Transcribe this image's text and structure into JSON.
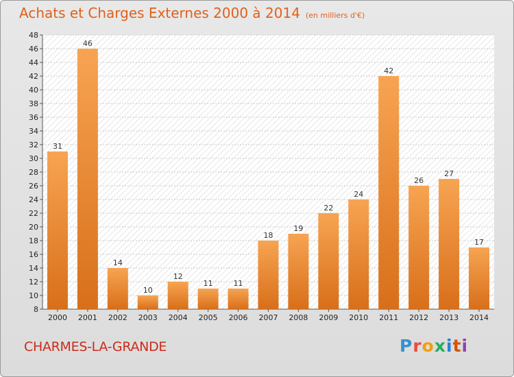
{
  "title": "Achats et Charges Externes 2000 à 2014",
  "subtitle": "(en milliers d'€)",
  "city": "CHARMES-LA-GRANDE",
  "logo": "Proxiti",
  "colors": {
    "bar_light": "#f7a452",
    "bar_dark": "#d86f1a",
    "title": "#e0601a",
    "city": "#cc2a1c"
  },
  "chart_data": {
    "type": "bar",
    "categories": [
      "2000",
      "2001",
      "2002",
      "2003",
      "2004",
      "2005",
      "2006",
      "2007",
      "2008",
      "2009",
      "2010",
      "2011",
      "2012",
      "2013",
      "2014"
    ],
    "values": [
      31,
      46,
      14,
      10,
      12,
      11,
      11,
      18,
      19,
      22,
      24,
      42,
      26,
      27,
      17
    ],
    "ylim": [
      8,
      48
    ],
    "yticks": [
      8,
      10,
      12,
      14,
      16,
      18,
      20,
      22,
      24,
      26,
      28,
      30,
      32,
      34,
      36,
      38,
      40,
      42,
      44,
      46,
      48
    ],
    "grid": true
  }
}
